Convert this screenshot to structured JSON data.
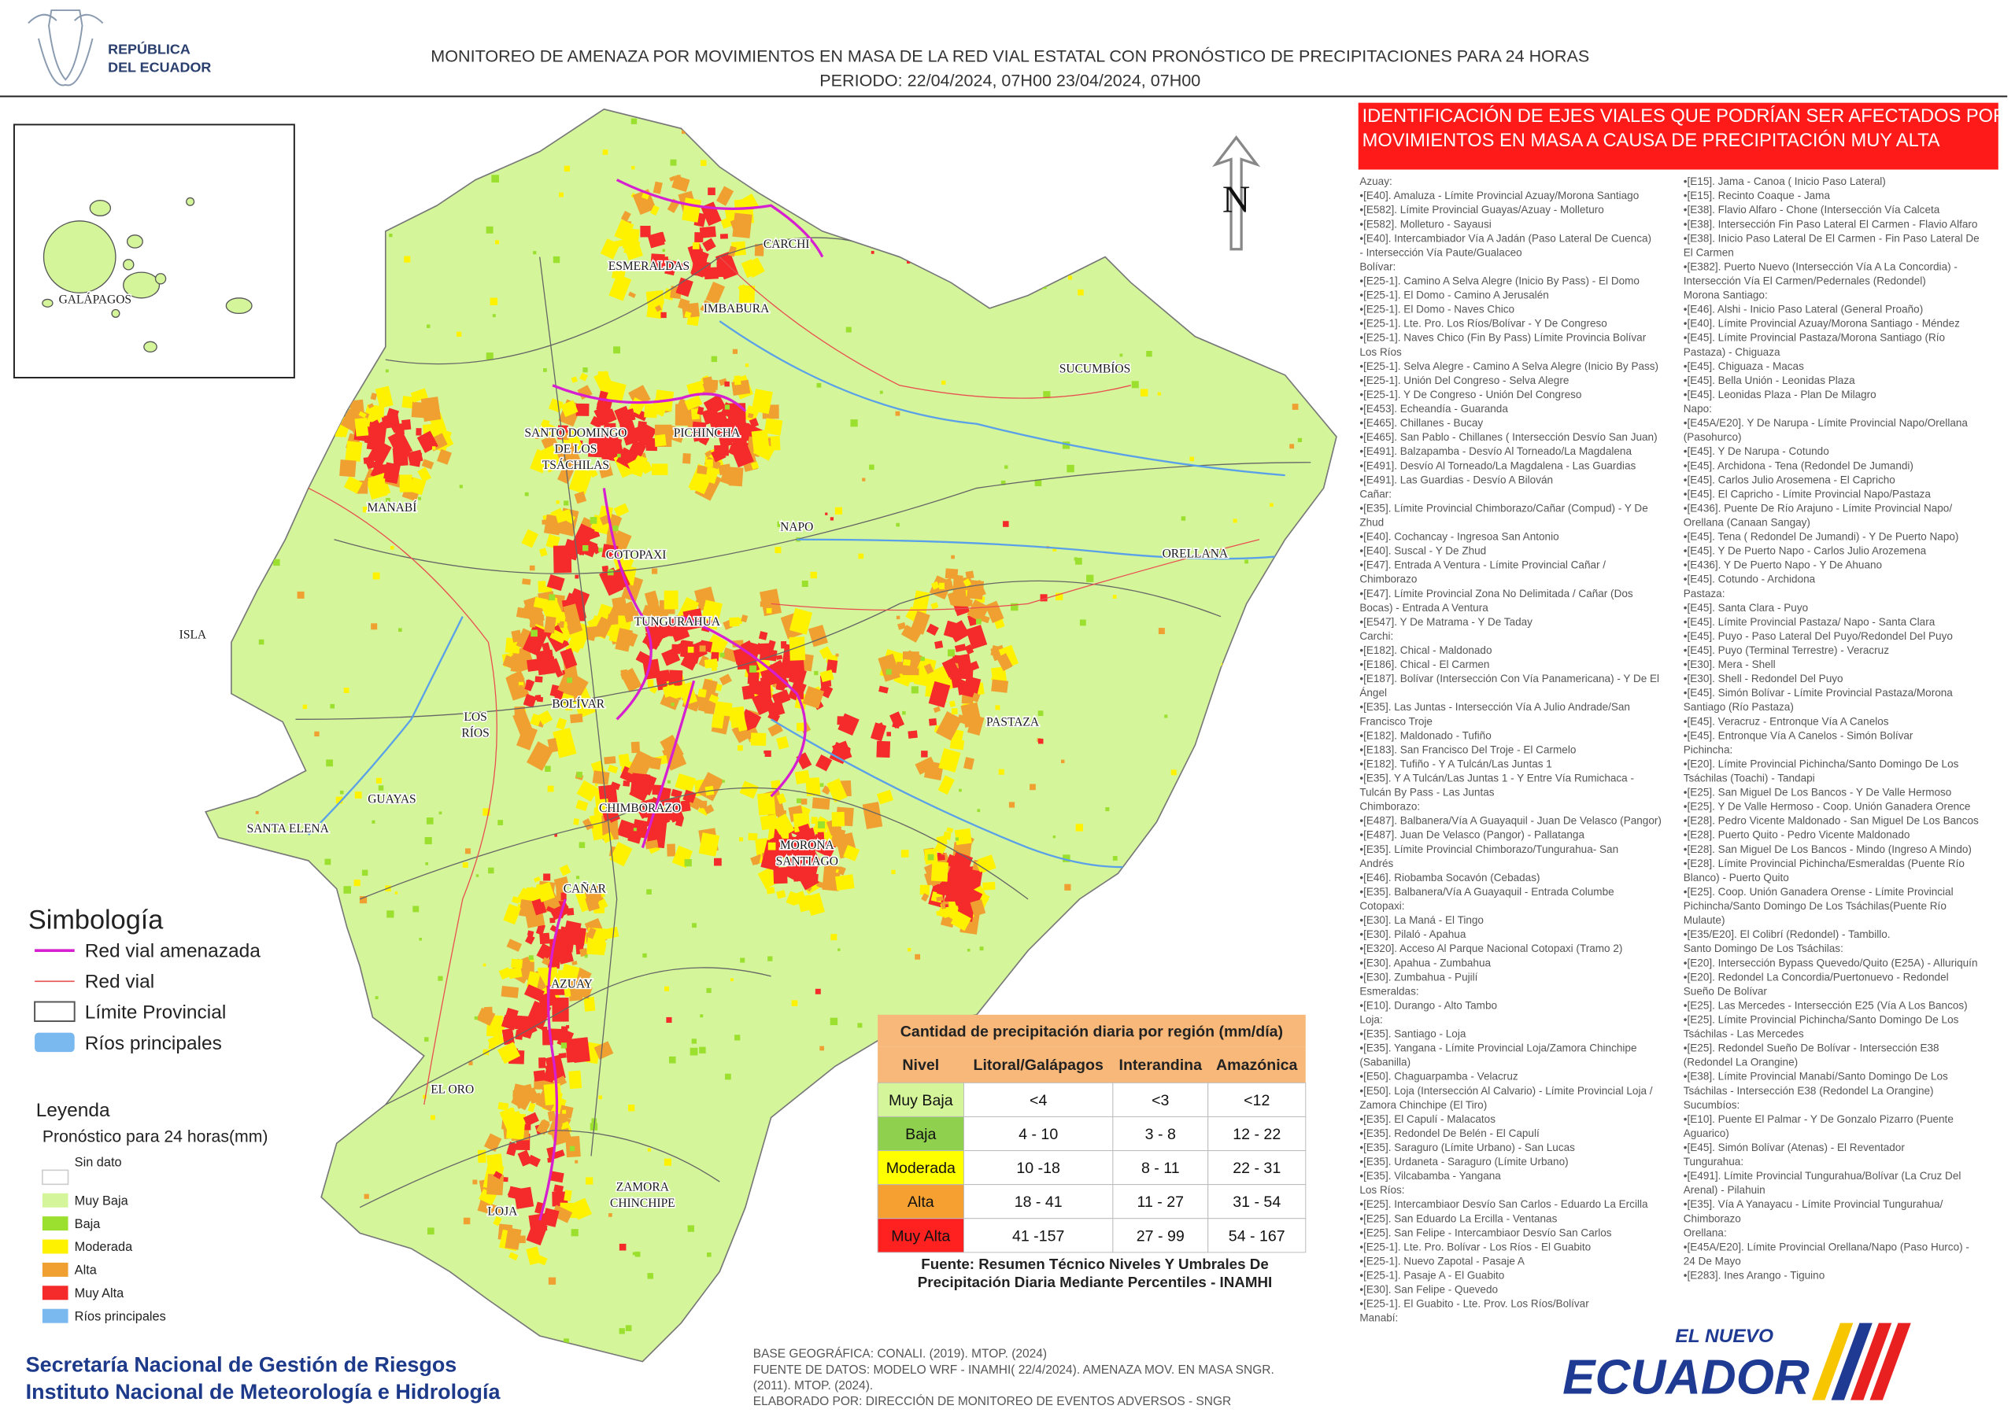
{
  "header": {
    "logo": [
      "REPÚBLICA",
      "DEL ECUADOR"
    ],
    "title": "MONITOREO DE AMENAZA POR MOVIMIENTOS EN MASA DE LA RED VIAL  ESTATAL  CON PRONÓSTICO  DE  PRECIPITACIONES PARA 24 HORAS",
    "period": "PERIODO: 22/04/2024, 07H00 23/04/2024, 07H00"
  },
  "map": {
    "north": "N",
    "inset_label": "GALÁPAGOS",
    "provinces": [
      [
        "ESMERALDAS"
      ],
      [
        "CARCHI"
      ],
      [
        "IMBABURA"
      ],
      [
        "SUCUMBÍOS"
      ],
      [
        "SANTO DOMINGO",
        "DE LOS",
        "TSÁCHILAS"
      ],
      [
        "PICHINCHA"
      ],
      [
        "MANABÍ"
      ],
      [
        "COTOPAXI"
      ],
      [
        "NAPO"
      ],
      [
        "ORELLANA"
      ],
      [
        "ISLA"
      ],
      [
        "TUNGURAHUA"
      ],
      [
        "BOLÍVAR"
      ],
      [
        "LOS",
        "RÍOS"
      ],
      [
        "PASTAZA"
      ],
      [
        "GUAYAS"
      ],
      [
        "SANTA ELENA"
      ],
      [
        "CHIMBORAZO"
      ],
      [
        "MORONA",
        "SANTIAGO"
      ],
      [
        "CAÑAR"
      ],
      [
        "AZUAY"
      ],
      [
        "EL ORO"
      ],
      [
        "ZAMORA",
        "CHINCHIPE"
      ],
      [
        "LOJA"
      ]
    ]
  },
  "legend": {
    "symbology_title": "Simbología",
    "symbology": [
      "Red vial amenazada",
      "Red vial",
      "Límite Provincial",
      "Ríos principales"
    ],
    "legend_title": "Leyenda",
    "legend_subtitle": "Pronóstico para 24 horas(mm)",
    "items": [
      {
        "label": "Sin dato",
        "color": "#ffffff"
      },
      {
        "label": "Muy Baja",
        "color": "#d4f59a"
      },
      {
        "label": "Baja",
        "color": "#9be02e"
      },
      {
        "label": "Moderada",
        "color": "#fff200"
      },
      {
        "label": "Alta",
        "color": "#f0a030"
      },
      {
        "label": "Muy Alta",
        "color": "#f52a2a"
      },
      {
        "label": "Ríos principales",
        "color": "#7ab8f0"
      }
    ]
  },
  "table": {
    "title": "Cantidad de precipitación diaria por región (mm/día)",
    "headers": [
      "Nivel",
      "Litoral/Galápagos",
      "Interandina",
      "Amazónica"
    ],
    "rows": [
      [
        "Muy Baja",
        "<4",
        "<3",
        "<12"
      ],
      [
        "Baja",
        "4 - 10",
        "3 - 8",
        "12 - 22"
      ],
      [
        "Moderada",
        "10 -18",
        "8 - 11",
        "22 - 31"
      ],
      [
        "Alta",
        "18 - 41",
        "11 - 27",
        "31 - 54"
      ],
      [
        "Muy Alta",
        "41 -157",
        "27 - 99",
        "54 - 167"
      ]
    ],
    "row_colors": [
      "#d4f59a",
      "#8fd14f",
      "#ffff00",
      "#f5a030",
      "#ff2020"
    ],
    "source": [
      "Fuente: Resumen Técnico Niveles Y Umbrales De",
      "Precipitación Diaria Mediante Percentiles - INAMHI"
    ]
  },
  "panel": {
    "title": [
      "IDENTIFICACIÓN DE EJES VIALES QUE PODRÍAN SER AFECTADOS POR",
      "MOVIMIENTOS EN MASA A CAUSA DE PRECIPITACIÓN MUY ALTA"
    ],
    "left": [
      "Azuay:",
      "•[E40]. Amaluza - Límite Provincial Azuay/Morona Santiago",
      "•[E582]. Límite Provincial Guayas/Azuay - Molleturo",
      "•[E582]. Molleturo - Sayausi",
      "•[E40]. Intercambiador Vía A Jadán (Paso Lateral De Cuenca)",
      "- Intersección Vía Paute/Gualaceo",
      "Bolívar:",
      "•[E25-1]. Camino A Selva Alegre (Inicio By Pass) - El Domo",
      "•[E25-1]. El Domo - Camino A Jerusalén",
      "•[E25-1]. El Domo - Naves Chico",
      "•[E25-1]. Lte. Pro. Los Ríos/Bolívar - Y De Congreso",
      "•[E25-1]. Naves Chico (Fin By Pass) Límite Provincia Bolívar",
      "Los Ríos",
      "•[E25-1]. Selva Alegre - Camino A Selva Alegre (Inicio By Pass)",
      "•[E25-1]. Unión Del Congreso - Selva Alegre",
      "•[E25-1]. Y De Congreso - Unión Del Congreso",
      "•[E453]. Echeandía - Guaranda",
      "•[E465]. Chillanes - Bucay",
      "•[E465]. San Pablo - Chillanes ( Intersección Desvío San Juan)",
      "•[E491]. Balzapamba - Desvío Al Torneado/La Magdalena",
      "•[E491]. Desvío Al Torneado/La Magdalena - Las Guardias",
      "•[E491]. Las Guardias - Desvío A Bilován",
      "Cañar:",
      "•[E35]. Límite Provincial Chimborazo/Cañar (Compud) - Y De",
      "Zhud",
      "•[E40]. Cochancay - Ingresoa San Antonio",
      "•[E40]. Suscal - Y De Zhud",
      "•[E47]. Entrada A Ventura - Límite Provincial Cañar /",
      "Chimborazo",
      "•[E47]. Límite Provincial Zona No Delimitada / Cañar (Dos",
      "Bocas) - Entrada  A Ventura",
      "•[E547]. Y De Matrama - Y De Taday",
      "Carchi:",
      "•[E182]. Chical - Maldonado",
      "•[E186]. Chical - El Carmen",
      "•[E187]. Bolívar (Intersección Con Vía Panamericana) - Y De El",
      "Ángel",
      "•[E35]. Las Juntas - Intersección Vía A Julio Andrade/San",
      "Francisco Troje",
      "•[E182]. Maldonado - Tufiño",
      "•[E183]. San Francisco Del Troje - El Carmelo",
      "•[E182]. Tufiño - Y A Tulcán/Las Juntas 1",
      "•[E35]. Y A Tulcán/Las Juntas 1 - Y Entre Vía Rumichaca -",
      "Tulcán By Pass - Las Juntas",
      "Chimborazo:",
      "•[E487]. Balbanera/Vía A Guayaquil - Juan De Velasco (Pangor)",
      "•[E487]. Juan De Velasco (Pangor) - Pallatanga",
      "•[E35]. Límite Provincial Chimborazo/Tungurahua- San",
      "Andrés",
      "•[E46]. Riobamba Socavón (Cebadas)",
      "•[E35]. Balbanera/Vía A Guayaquil - Entrada Columbe",
      "Cotopaxi:",
      "•[E30]. La Maná - El Tingo",
      "•[E30]. Pilaló - Apahua",
      "•[E320]. Acceso Al Parque Nacional Cotopaxi (Tramo 2)",
      "•[E30]. Apahua - Zumbahua",
      "•[E30]. Zumbahua - Pujilí",
      "Esmeraldas:",
      "•[E10]. Durango - Alto Tambo",
      "Loja:",
      "•[E35]. Santiago - Loja",
      "•[E35]. Yangana - Límite Provincial Loja/Zamora Chinchipe",
      "(Sabanilla)",
      "•[E50]. Chaguarpamba - Velacruz",
      "•[E50]. Loja (Intersección Al Calvario) - Límite Provincial Loja /",
      "Zamora Chinchipe (El Tiro)",
      "•[E35]. El Capulí - Malacatos",
      "•[E35]. Redondel De Belén - El Capulí",
      "•[E35]. Saraguro (Límite Urbano) - San Lucas",
      "•[E35]. Urdaneta - Saraguro (Límite Urbano)",
      "•[E35]. Vilcabamba - Yangana",
      "Los Ríos:",
      "•[E25]. Intercambiaor Desvío San Carlos - Eduardo La Ercilla",
      "•[E25]. San Eduardo La Ercilla - Ventanas",
      "•[E25]. San Felipe - Intercambiaor Desvío San Carlos",
      "•[E25-1]. Lte. Pro. Bolívar - Los Ríos - El Guabito",
      "•[E25-1]. Nuevo Zapotal - Pasaje A",
      "•[E25-1]. Pasaje A - El Guabito",
      "•[E30]. San Felipe - Quevedo",
      "•[E25-1]. El Guabito - Lte. Prov. Los Ríos/Bolívar",
      "Manabí:"
    ],
    "right": [
      "•[E15]. Jama - Canoa ( Inicio Paso Lateral)",
      "•[E15]. Recinto Coaque - Jama",
      "•[E38]. Flavio Alfaro - Chone (Intersección Vía Calceta",
      "•[E38]. Intersección Fin Paso Lateral El Carmen - Flavio Alfaro",
      "•[E38]. Inicio Paso Lateral De El Carmen - Fin Paso Lateral De",
      "El Carmen",
      "•[E382]. Puerto Nuevo (Intersección Vía A La Concordia) -",
      "Intersección Vía El Carmen/Pedernales (Redondel)",
      "Morona Santiago:",
      "•[E46]. Alshi - Inicio Paso Lateral (General Proaño)",
      "•[E40]. Límite Provincial Azuay/Morona Santiago - Méndez",
      "•[E45]. Límite Provincial Pastaza/Morona Santiago (Río",
      "Pastaza) - Chiguaza",
      "•[E45]. Chiguaza - Macas",
      "•[E45]. Bella Unión - Leonidas Plaza",
      "•[E45]. Leonidas Plaza - Plan De Milagro",
      "Napo:",
      "•[E45A/E20]. Y De Narupa - Límite Provincial Napo/Orellana",
      "(Pasohurco)",
      "•[E45]. Y De Narupa - Cotundo",
      "•[E45]. Archidona - Tena (Redondel De Jumandi)",
      "•[E45]. Carlos Julio Arosemena - El Capricho",
      "•[E45]. El Capricho - Límite Provincial Napo/Pastaza",
      "•[E436]. Puente De Río Arajuno - Límite Provincial Napo/",
      "Orellana (Canaan Sangay)",
      "•[E45]. Tena ( Redondel De Jumandi) - Y De Puerto Napo)",
      "•[E45]. Y De Puerto Napo - Carlos Julio Arozemena",
      "•[E436]. Y De Puerto Napo - Y De Ahuano",
      "•[E45]. Cotundo - Archidona",
      "Pastaza:",
      "•[E45]. Santa Clara - Puyo",
      "•[E45]. Límite Provincial Pastaza/ Napo - Santa Clara",
      "•[E45]. Puyo - Paso Lateral Del Puyo/Redondel Del Puyo",
      "•[E45]. Puyo (Terminal Terrestre) - Veracruz",
      "•[E30]. Mera - Shell",
      "•[E30]. Shell - Redondel Del Puyo",
      "•[E45]. Simón Bolívar - Límite Provincial Pastaza/Morona",
      "Santiago (Río Pastaza)",
      "•[E45]. Veracruz - Entronque Vía A Canelos",
      "•[E45]. Entronque Vía A Canelos - Simón Bolívar",
      "Pichincha:",
      "•[E20]. Límite Provincial Pichincha/Santo Domingo De Los",
      "Tsáchilas (Toachi) - Tandapi",
      "•[E25]. San Miguel De Los Bancos - Y De Valle Hermoso",
      "•[E25]. Y De Valle Hermoso - Coop. Unión Ganadera Orence",
      "•[E28]. Pedro Vicente Maldonado - San Miguel De Los Bancos",
      "•[E28]. Puerto Quito - Pedro Vicente Maldonado",
      "•[E28]. San Miguel De Los Bancos - Mindo (Ingreso A Mindo)",
      "•[E28]. Límite Provincial Pichincha/Esmeraldas (Puente Río",
      "Blanco) - Puerto Quito",
      "•[E25]. Coop. Unión Ganadera Orense - Límite Provincial",
      "Pichincha/Santo Domingo De Los Tsáchilas(Puente Río",
      "Mulaute)",
      "•[E35/E20]. El Colibrí (Redondel) - Tambillo.",
      "Santo Domingo De Los Tsáchilas:",
      "•[E20]. Intersección Bypass Quevedo/Quito (E25A) - Alluriquín",
      "•[E20]. Redondel La Concordia/Puertonuevo - Redondel",
      "Sueño De Bolívar",
      "•[E25]. Las Mercedes - Intersección E25 (Vía A Los Bancos)",
      "•[E25]. Límite Provincial Pichincha/Santo Domingo De Los",
      "Tsáchilas - Las Mercedes",
      "•[E25]. Redondel Sueño De Bolívar - Intersección E38",
      "(Redondel La Orangine)",
      "•[E38]. Límite Provincial Manabí/Santo Domingo De Los",
      "Tsáchilas - Intersección E38 (Redondel La Orangine)",
      "Sucumbíos:",
      "•[E10]. Puente El Palmar - Y De Gonzalo Pizarro (Puente",
      "Aguarico)",
      "•[E45]. Simón Bolívar (Atenas) - El Reventador",
      "Tungurahua:",
      "•[E491]. Límite Provincial Tungurahua/Bolívar (La Cruz Del",
      "Arenal) - Pilahuin",
      "•[E35]. Vía A Yanayacu - Límite Provincial Tungurahua/",
      "Chimborazo",
      "Orellana:",
      "•[E45A/E20]. Límite Provincial Orellana/Napo (Paso Hurco) -",
      "24 De Mayo",
      "•[E283]. Ines Arango - Tiguino"
    ]
  },
  "footer": {
    "institutions": [
      "Secretaría Nacional de Gestión de Riesgos",
      "Instituto Nacional de Meteorología e Hidrología"
    ],
    "notes": [
      "BASE GEOGRÁFICA: CONALI. (2019). MTOP. (2024)",
      "FUENTE DE DATOS: MODELO WRF - INAMHI( 22/4/2024).  AMENAZA MOV. EN MASA SNGR.",
      "(2011). MTOP. (2024).",
      "ELABORADO POR: DIRECCIÓN DE MONITOREO DE EVENTOS ADVERSOS - SNGR"
    ],
    "logo": [
      "EL NUEVO",
      "ECUADOR"
    ]
  }
}
